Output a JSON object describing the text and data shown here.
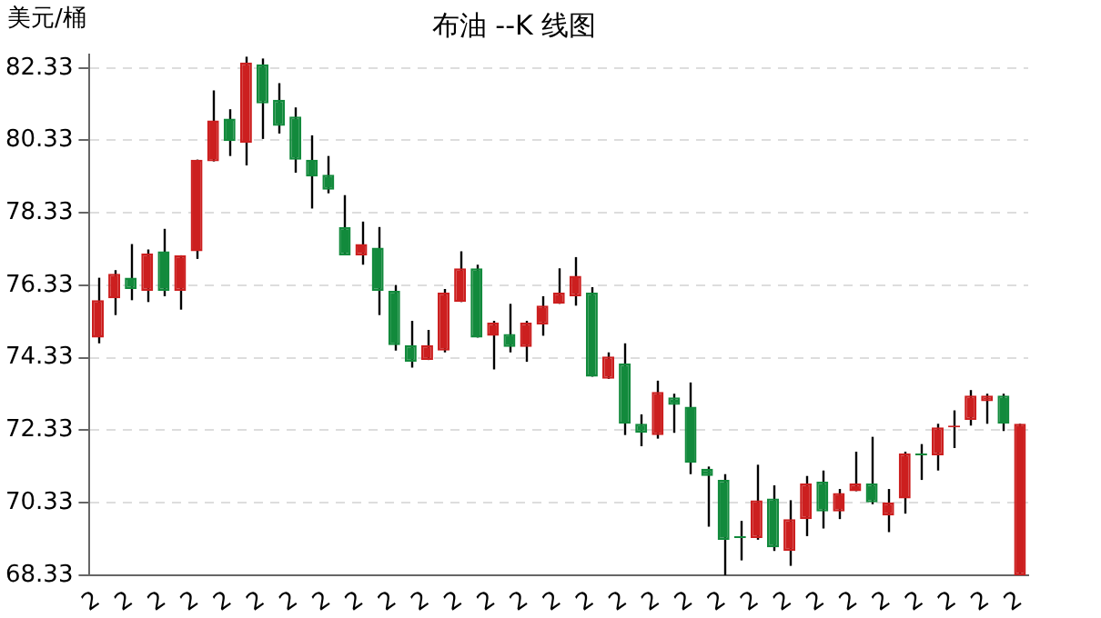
{
  "chart_data": {
    "type": "candlestick",
    "title": "布油 --K 线图",
    "ylabel": "美元/桶",
    "categories": [
      "2",
      null,
      "2",
      null,
      "2",
      null,
      "2",
      null,
      "2",
      null,
      "2",
      null,
      "2",
      null,
      "2",
      null,
      "2",
      null,
      "2",
      null,
      "2",
      null,
      "2",
      null,
      "2",
      null,
      "2",
      null,
      "2",
      null,
      "2",
      null,
      "2",
      null,
      "2",
      null,
      "2",
      null,
      "2",
      null,
      "2",
      null,
      "2",
      null,
      "2",
      null,
      "2",
      null,
      "2",
      null,
      "2",
      null,
      "2",
      null,
      "2",
      null,
      "2"
    ],
    "ohlc": [
      [
        74.89,
        76.54,
        74.73,
        75.92
      ],
      [
        75.97,
        76.75,
        75.51,
        76.65
      ],
      [
        76.54,
        77.47,
        75.92,
        76.23
      ],
      [
        76.18,
        77.32,
        75.87,
        77.21
      ],
      [
        77.27,
        77.89,
        76.03,
        76.18
      ],
      [
        76.18,
        77.16,
        75.66,
        77.16
      ],
      [
        77.27,
        79.8,
        77.06,
        79.8
      ],
      [
        79.75,
        81.71,
        79.75,
        80.88
      ],
      [
        80.93,
        81.19,
        79.9,
        80.31
      ],
      [
        80.26,
        82.64,
        79.64,
        82.48
      ],
      [
        82.43,
        82.59,
        80.37,
        81.35
      ],
      [
        81.45,
        81.91,
        80.52,
        80.73
      ],
      [
        80.99,
        81.24,
        79.44,
        79.8
      ],
      [
        79.8,
        80.47,
        78.45,
        79.33
      ],
      [
        79.38,
        79.9,
        78.87,
        78.97
      ],
      [
        77.94,
        78.82,
        77.16,
        77.16
      ],
      [
        77.16,
        78.09,
        76.9,
        77.47
      ],
      [
        77.37,
        77.94,
        75.51,
        76.18
      ],
      [
        76.18,
        76.34,
        74.53,
        74.68
      ],
      [
        74.68,
        75.35,
        74.06,
        74.22
      ],
      [
        74.27,
        75.1,
        74.27,
        74.68
      ],
      [
        74.53,
        76.23,
        74.48,
        76.13
      ],
      [
        75.87,
        77.27,
        75.87,
        76.8
      ],
      [
        76.8,
        76.9,
        74.89,
        74.89
      ],
      [
        74.94,
        75.35,
        74.01,
        75.3
      ],
      [
        74.99,
        75.82,
        74.48,
        74.63
      ],
      [
        74.63,
        75.35,
        74.22,
        75.3
      ],
      [
        75.25,
        76.03,
        74.94,
        75.77
      ],
      [
        75.82,
        76.8,
        75.82,
        76.13
      ],
      [
        76.03,
        77.11,
        75.77,
        76.59
      ],
      [
        76.13,
        76.28,
        73.81,
        73.81
      ],
      [
        73.75,
        74.48,
        73.75,
        74.37
      ],
      [
        74.17,
        74.73,
        72.2,
        72.51
      ],
      [
        72.51,
        72.77,
        71.89,
        72.26
      ],
      [
        72.2,
        73.7,
        72.1,
        73.39
      ],
      [
        73.24,
        73.34,
        72.26,
        73.03
      ],
      [
        72.98,
        73.65,
        71.12,
        71.43
      ],
      [
        71.27,
        71.33,
        69.67,
        71.07
      ],
      [
        70.96,
        71.12,
        68.33,
        69.31
      ],
      [
        69.41,
        69.83,
        68.74,
        69.36
      ],
      [
        69.36,
        71.38,
        69.31,
        70.4
      ],
      [
        70.45,
        70.81,
        69.0,
        69.1
      ],
      [
        69.0,
        70.4,
        68.59,
        69.88
      ],
      [
        69.88,
        71.07,
        69.41,
        70.86
      ],
      [
        70.91,
        71.22,
        69.62,
        70.09
      ],
      [
        70.09,
        70.71,
        69.88,
        70.6
      ],
      [
        70.65,
        71.74,
        70.65,
        70.86
      ],
      [
        70.86,
        72.15,
        70.29,
        70.34
      ],
      [
        69.98,
        70.71,
        69.52,
        70.34
      ],
      [
        70.45,
        71.74,
        70.03,
        71.69
      ],
      [
        71.69,
        71.95,
        70.96,
        71.64
      ],
      [
        71.64,
        72.51,
        71.22,
        72.41
      ],
      [
        72.41,
        72.88,
        71.84,
        72.46
      ],
      [
        72.62,
        73.44,
        72.46,
        73.29
      ],
      [
        73.13,
        73.34,
        72.51,
        73.29
      ],
      [
        73.29,
        73.34,
        72.31,
        72.51
      ],
      [
        68.33,
        72.51,
        68.33,
        72.51
      ]
    ],
    "colors": [
      "#cc1f1f",
      "#cc1f1f",
      "#128a3c",
      "#cc1f1f",
      "#128a3c",
      "#cc1f1f",
      "#cc1f1f",
      "#cc1f1f",
      "#128a3c",
      "#cc1f1f",
      "#128a3c",
      "#128a3c",
      "#128a3c",
      "#128a3c",
      "#128a3c",
      "#128a3c",
      "#cc1f1f",
      "#128a3c",
      "#128a3c",
      "#128a3c",
      "#cc1f1f",
      "#cc1f1f",
      "#cc1f1f",
      "#128a3c",
      "#cc1f1f",
      "#128a3c",
      "#cc1f1f",
      "#cc1f1f",
      "#cc1f1f",
      "#cc1f1f",
      "#128a3c",
      "#cc1f1f",
      "#128a3c",
      "#128a3c",
      "#cc1f1f",
      "#128a3c",
      "#128a3c",
      "#128a3c",
      "#128a3c",
      "#128a3c",
      "#cc1f1f",
      "#128a3c",
      "#cc1f1f",
      "#cc1f1f",
      "#128a3c",
      "#cc1f1f",
      "#cc1f1f",
      "#128a3c",
      "#cc1f1f",
      "#cc1f1f",
      "#128a3c",
      "#cc1f1f",
      "#cc1f1f",
      "#cc1f1f",
      "#cc1f1f",
      "#128a3c",
      "#cc1f1f"
    ],
    "ylim": [
      68.33,
      82.7
    ],
    "yticks": [
      68.33,
      70.33,
      72.33,
      74.33,
      76.33,
      78.33,
      80.33,
      82.33
    ],
    "grid": "y",
    "legend": false
  }
}
